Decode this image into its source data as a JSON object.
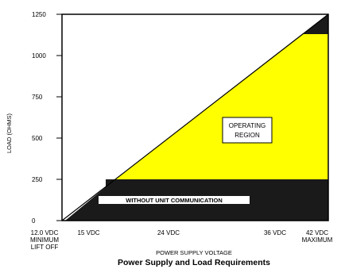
{
  "chart_data": {
    "type": "area",
    "title": "Power Supply and Load Requirements",
    "xlabel": "POWER SUPPLY VOLTAGE",
    "ylabel": "LOAD (OHMS)",
    "x_ticks": [
      {
        "value": 12,
        "lines": [
          "12.0 VDC",
          "MINIMUM",
          "LIFT OFF"
        ]
      },
      {
        "value": 15,
        "lines": [
          "15 VDC"
        ]
      },
      {
        "value": 24,
        "lines": [
          "24 VDC"
        ]
      },
      {
        "value": 36,
        "lines": [
          "36 VDC"
        ]
      },
      {
        "value": 42,
        "lines": [
          "42 VDC",
          "MAXIMUM"
        ]
      }
    ],
    "y_ticks": [
      {
        "value": 0,
        "label": "0"
      },
      {
        "value": 250,
        "label": "250"
      },
      {
        "value": 500,
        "label": "500"
      },
      {
        "value": 750,
        "label": "750"
      },
      {
        "value": 1000,
        "label": "1000"
      },
      {
        "value": 1250,
        "label": "1250"
      }
    ],
    "xlim": [
      12,
      42
    ],
    "ylim": [
      0,
      1250
    ],
    "max_load_line": {
      "x": [
        12,
        42
      ],
      "y": [
        0,
        1250
      ]
    },
    "regions": [
      {
        "name": "OPERATING REGION",
        "label_lines": [
          "OPERATING",
          "REGION"
        ],
        "color": "#ffff00"
      },
      {
        "name": "WITHOUT UNIT COMMUNICATION",
        "label": "WITHOUT UNIT COMMUNICATION",
        "y_range": [
          0,
          250
        ],
        "color": "#1a1a1a"
      }
    ],
    "colors": {
      "operating": "#ffff00",
      "dark": "#1a1a1a",
      "frame": "#000000"
    },
    "grid": false
  }
}
